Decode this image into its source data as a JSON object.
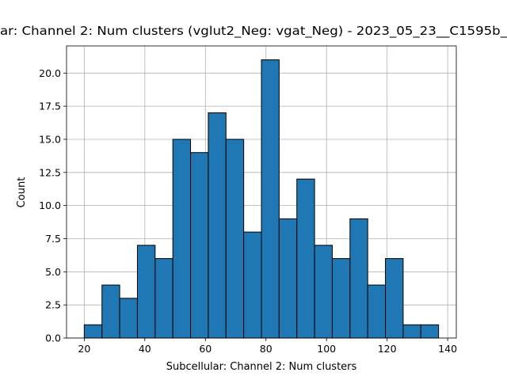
{
  "chart_data": {
    "type": "histogram",
    "title": "ar: Channel 2: Num clusters (vglut2_Neg: vgat_Neg) - 2023_05_23__C1595b_",
    "x_label": "Subcellular: Channel 2: Num clusters",
    "y_label": "Count",
    "bins": [
      20,
      25.85,
      31.7,
      37.55,
      43.4,
      49.25,
      55.1,
      60.95,
      66.8,
      72.65,
      78.5,
      84.35,
      90.2,
      96.05,
      101.9,
      107.75,
      113.6,
      119.45,
      125.3,
      131.15,
      137
    ],
    "values": [
      1,
      4,
      3,
      7,
      6,
      15,
      14,
      17,
      15,
      8,
      21,
      9,
      12,
      7,
      6,
      9,
      4,
      6,
      1,
      1
    ],
    "color": "#1f77b4",
    "edge_color": "#000000",
    "xlim": [
      14.15,
      142.85
    ],
    "xticks": [
      20,
      40,
      60,
      80,
      100,
      120,
      140
    ],
    "ylim": [
      0,
      22.05
    ],
    "yticks": [
      {
        "value": 0,
        "label": "0.0"
      },
      {
        "value": 2.5,
        "label": "2.5"
      },
      {
        "value": 5,
        "label": "5.0"
      },
      {
        "value": 7.5,
        "label": "7.5"
      },
      {
        "value": 10,
        "label": "10.0"
      },
      {
        "value": 12.5,
        "label": "12.5"
      },
      {
        "value": 15,
        "label": "15.0"
      },
      {
        "value": 17.5,
        "label": "17.5"
      },
      {
        "value": 20,
        "label": "20.0"
      }
    ],
    "grid": true
  }
}
